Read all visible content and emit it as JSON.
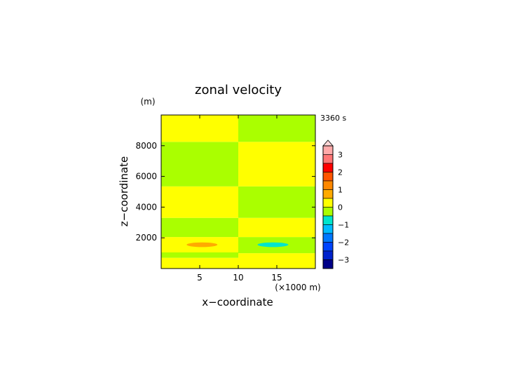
{
  "chart_data": {
    "type": "heatmap",
    "title": "zonal velocity",
    "xlabel": "x−coordinate",
    "ylabel": "z−coordinate",
    "x_unit": "(×1000 m)",
    "y_unit": "(m)",
    "time_label": "3360 s",
    "xlim": [
      0,
      20
    ],
    "ylim": [
      0,
      10000
    ],
    "x_ticks": [
      5,
      10,
      15
    ],
    "y_ticks": [
      2000,
      4000,
      6000,
      8000
    ],
    "grid": false,
    "colors": {
      "positive_small": "#ffff00",
      "negative_small": "#aaff00",
      "orange": "#ffaa00",
      "cyan": "#00e5cc"
    },
    "fields": [
      {
        "x0": 0,
        "x1": 10,
        "y0": 0,
        "y1": 700,
        "value": 0.2
      },
      {
        "x0": 0,
        "x1": 10,
        "y0": 700,
        "y1": 1050,
        "value": -0.2
      },
      {
        "x0": 0,
        "x1": 10,
        "y0": 1050,
        "y1": 1050,
        "value": 0.2
      },
      {
        "x0": 0,
        "x1": 10,
        "y0": 1050,
        "y1": 2050,
        "value": 0.2
      },
      {
        "x0": 0,
        "x1": 10,
        "y0": 2050,
        "y1": 3300,
        "value": -0.2
      },
      {
        "x0": 0,
        "x1": 10,
        "y0": 3300,
        "y1": 5350,
        "value": 0.2
      },
      {
        "x0": 0,
        "x1": 10,
        "y0": 5350,
        "y1": 8250,
        "value": -0.2
      },
      {
        "x0": 0,
        "x1": 10,
        "y0": 8250,
        "y1": 10000,
        "value": 0.2
      },
      {
        "x0": 10,
        "x1": 20,
        "y0": 0,
        "y1": 1000,
        "value": 0.2
      },
      {
        "x0": 10,
        "x1": 20,
        "y0": 1000,
        "y1": 2050,
        "value": -0.2
      },
      {
        "x0": 10,
        "x1": 20,
        "y0": 2050,
        "y1": 3300,
        "value": 0.2
      },
      {
        "x0": 10,
        "x1": 20,
        "y0": 3300,
        "y1": 5350,
        "value": -0.2
      },
      {
        "x0": 10,
        "x1": 20,
        "y0": 5350,
        "y1": 8250,
        "value": 0.2
      },
      {
        "x0": 10,
        "x1": 20,
        "y0": 8250,
        "y1": 10000,
        "value": -0.2
      }
    ],
    "anomalies": [
      {
        "cx": 5.3,
        "cy": 1550,
        "rx": 2.0,
        "ry": 150,
        "value": 0.8
      },
      {
        "cx": 14.5,
        "cy": 1550,
        "rx": 2.0,
        "ry": 150,
        "value": -0.8
      }
    ],
    "colorbar": {
      "tick_labels": [
        "3",
        "2",
        "1",
        "0",
        "−1",
        "−2",
        "−3"
      ],
      "levels": [
        {
          "value": 3.25,
          "color": "#ffaaaa"
        },
        {
          "value": 2.75,
          "color": "#ff7777"
        },
        {
          "value": 2.25,
          "color": "#ff0000"
        },
        {
          "value": 1.75,
          "color": "#ff5500"
        },
        {
          "value": 1.25,
          "color": "#ff8800"
        },
        {
          "value": 0.75,
          "color": "#ffaa00"
        },
        {
          "value": 0.25,
          "color": "#ffff00"
        },
        {
          "value": -0.25,
          "color": "#aaff00"
        },
        {
          "value": -0.75,
          "color": "#00e5cc"
        },
        {
          "value": -1.25,
          "color": "#00bbff"
        },
        {
          "value": -1.75,
          "color": "#0077ff"
        },
        {
          "value": -2.25,
          "color": "#0044ff"
        },
        {
          "value": -2.75,
          "color": "#0022cc"
        },
        {
          "value": -3.25,
          "color": "#000088"
        }
      ]
    }
  }
}
